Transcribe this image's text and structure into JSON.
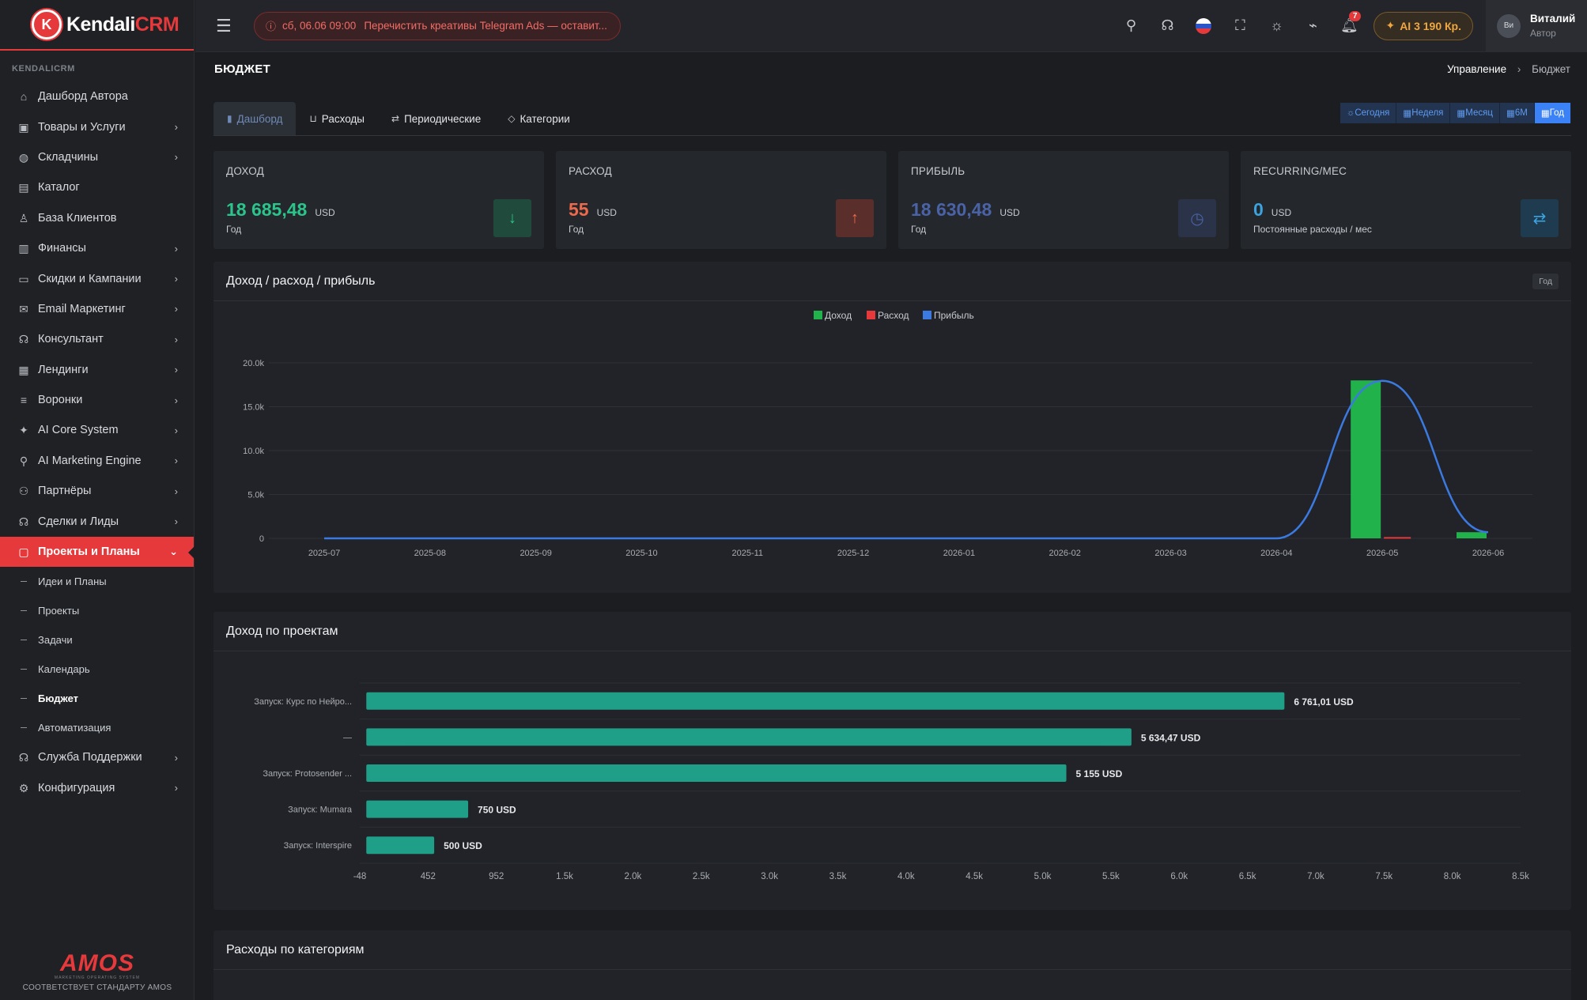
{
  "brand": {
    "name_main": "Kendali",
    "name_accent": "CRM"
  },
  "sidebar": {
    "section": "KENDALICRM",
    "items": [
      {
        "label": "Дашборд Автора",
        "icon": "home-icon",
        "chev": false
      },
      {
        "label": "Товары и Услуги",
        "icon": "box-icon",
        "chev": true
      },
      {
        "label": "Складчины",
        "icon": "globe-icon",
        "chev": true
      },
      {
        "label": "Каталог",
        "icon": "store-icon",
        "chev": false
      },
      {
        "label": "База Клиентов",
        "icon": "user-icon",
        "chev": false
      },
      {
        "label": "Финансы",
        "icon": "wallet-icon",
        "chev": true
      },
      {
        "label": "Скидки и Кампании",
        "icon": "ticket-icon",
        "chev": true
      },
      {
        "label": "Email Маркетинг",
        "icon": "mail-icon",
        "chev": true
      },
      {
        "label": "Консультант",
        "icon": "headset-icon",
        "chev": true
      },
      {
        "label": "Лендинги",
        "icon": "layout-icon",
        "chev": true
      },
      {
        "label": "Воронки",
        "icon": "filter-icon",
        "chev": true
      },
      {
        "label": "AI Core System",
        "icon": "sparkle-icon",
        "chev": true
      },
      {
        "label": "AI Marketing Engine",
        "icon": "rocket-icon",
        "chev": true
      },
      {
        "label": "Партнёры",
        "icon": "users-icon",
        "chev": true
      },
      {
        "label": "Сделки и Лиды",
        "icon": "handshake-icon",
        "chev": true
      }
    ],
    "active_item": {
      "label": "Проекты и Планы",
      "icon": "folder-icon"
    },
    "sub_items": [
      "Идеи и Планы",
      "Проекты",
      "Задачи",
      "Календарь",
      "Бюджет",
      "Автоматизация"
    ],
    "current_sub": "Бюджет",
    "after_items": [
      {
        "label": "Служба Поддержки",
        "icon": "headset-icon"
      },
      {
        "label": "Конфигурация",
        "icon": "gear-icon"
      }
    ],
    "footer": {
      "logo_main": "AMOS",
      "logo_sub": "MARKETING OPERATING SYSTEM",
      "standard": "СООТВЕТСТВУЕТ СТАНДАРТУ AMOS"
    }
  },
  "topbar": {
    "alert_date": "сб, 06.06 09:00",
    "alert_text": "Перечистить креативы Telegram Ads — оставит...",
    "notifications_count": "7",
    "ai_credits": "AI 3 190 Кр.",
    "user_name": "Виталий",
    "user_role": "Автор",
    "avatar_alt": "Ви"
  },
  "page": {
    "title": "БЮДЖЕТ",
    "breadcrumb_parent": "Управление",
    "breadcrumb_current": "Бюджет"
  },
  "tabs": [
    {
      "label": "Дашборд",
      "icon": "chart-icon",
      "active": true
    },
    {
      "label": "Расходы",
      "icon": "cart-icon",
      "active": false
    },
    {
      "label": "Периодические",
      "icon": "repeat-icon",
      "active": false
    },
    {
      "label": "Категории",
      "icon": "tag-icon",
      "active": false
    }
  ],
  "periods": [
    {
      "label": "Сегодня",
      "active": false
    },
    {
      "label": "Неделя",
      "active": false
    },
    {
      "label": "Месяц",
      "active": false
    },
    {
      "label": "6М",
      "active": false
    },
    {
      "label": "Год",
      "active": true
    }
  ],
  "cards": [
    {
      "label": "ДОХОД",
      "value": "18 685,48",
      "currency": "USD",
      "sub": "Год",
      "color": "#2bc48a",
      "icon_bg": "#1f4a3c",
      "icon": "↓",
      "icon_color": "#2bc48a",
      "icon_name": "arrow-down-icon"
    },
    {
      "label": "РАСХОД",
      "value": "55",
      "currency": "USD",
      "sub": "Год",
      "color": "#ee6a4b",
      "icon_bg": "#5a2e2a",
      "icon": "↑",
      "icon_color": "#ee6a4b",
      "icon_name": "arrow-up-icon"
    },
    {
      "label": "ПРИБЫЛЬ",
      "value": "18 630,48",
      "currency": "USD",
      "sub": "Год",
      "color": "#4a63a6",
      "icon_bg": "#2a3347",
      "icon": "◷",
      "icon_color": "#4a63a6",
      "icon_name": "trend-icon"
    },
    {
      "label": "RECURRING/МЕС",
      "value": "0",
      "currency": "USD",
      "sub": "Постоянные расходы / мес",
      "color": "#3aa3e0",
      "icon_bg": "#1f3b4f",
      "icon": "⇄",
      "icon_color": "#3aa3e0",
      "icon_name": "repeat-icon"
    }
  ],
  "panel_income": {
    "title": "Доход / расход / прибыль",
    "tag": "Год"
  },
  "panel_projects": {
    "title": "Доход по проектам"
  },
  "panel_expenses": {
    "title": "Расходы по категориям"
  },
  "chart_data": [
    {
      "type": "bar",
      "title": "",
      "legend": [
        "Доход",
        "Расход",
        "Прибыль"
      ],
      "legend_position": "top",
      "colors": {
        "Доход": "#22b24c",
        "Расход": "#e5393c",
        "Прибыль": "#3b7ae0"
      },
      "categories": [
        "2025-07",
        "2025-08",
        "2025-09",
        "2025-10",
        "2025-11",
        "2025-12",
        "2026-01",
        "2026-02",
        "2026-03",
        "2026-04",
        "2026-05",
        "2026-06"
      ],
      "series": [
        {
          "name": "Доход",
          "type": "bar",
          "values": [
            0,
            0,
            0,
            0,
            0,
            0,
            0,
            0,
            0,
            0,
            18000,
            700
          ]
        },
        {
          "name": "Расход",
          "type": "bar",
          "values": [
            0,
            0,
            0,
            0,
            0,
            0,
            0,
            0,
            0,
            0,
            55,
            0
          ]
        },
        {
          "name": "Прибыль",
          "type": "line",
          "values": [
            0,
            0,
            0,
            0,
            0,
            0,
            0,
            0,
            0,
            0,
            17945,
            700
          ]
        }
      ],
      "ylim": [
        0,
        20000
      ],
      "yticks": [
        "0",
        "5.0k",
        "10.0k",
        "15.0k",
        "20.0k"
      ],
      "grid": true
    },
    {
      "type": "bar",
      "orientation": "horizontal",
      "title": "",
      "categories": [
        "Запуск: Курс по Нейро...",
        "—",
        "Запуск: Protosender ...",
        "Запуск: Mumara",
        "Запуск: Interspire"
      ],
      "values": [
        6761.01,
        5634.47,
        5155,
        750,
        500
      ],
      "labels": [
        "6 761,01 USD",
        "5 634,47 USD",
        "5 155 USD",
        "750 USD",
        "500 USD"
      ],
      "color": "#1f9e88",
      "xlim": [
        -48,
        8500
      ],
      "xticks": [
        "-48",
        "452",
        "952",
        "1.5k",
        "2.0k",
        "2.5k",
        "3.0k",
        "3.5k",
        "4.0k",
        "4.5k",
        "5.0k",
        "5.5k",
        "6.0k",
        "6.5k",
        "7.0k",
        "7.5k",
        "8.0k",
        "8.5k"
      ]
    }
  ]
}
